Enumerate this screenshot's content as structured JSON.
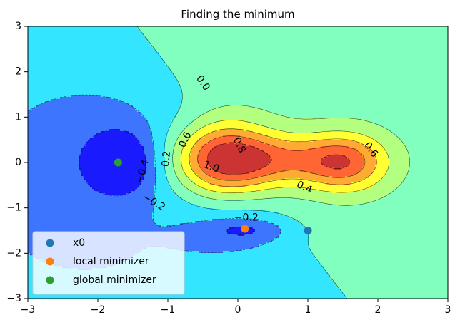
{
  "chart_data": {
    "type": "contour",
    "title": "Finding the minimum",
    "xlabel": "",
    "ylabel": "",
    "xlim": [
      -3,
      3
    ],
    "ylim": [
      -3,
      3
    ],
    "x_ticks": [
      -3,
      -2,
      -1,
      0,
      1,
      2,
      3
    ],
    "y_ticks": [
      -3,
      -2,
      -1,
      0,
      1,
      2,
      3
    ],
    "x_tick_labels": [
      "−3",
      "−2",
      "−1",
      "0",
      "1",
      "2",
      "3"
    ],
    "y_tick_labels": [
      "−3",
      "−2",
      "−1",
      "0",
      "1",
      "2",
      "3"
    ],
    "grid": false,
    "legend_position": "lower-left",
    "contour_levels": [
      -0.4,
      -0.2,
      0.0,
      0.2,
      0.4,
      0.6,
      0.8,
      1.0
    ],
    "contour_labels": [
      {
        "text": "0.0",
        "x": -0.5,
        "y": 1.75,
        "angle": 55
      },
      {
        "text": "0.2",
        "x": -1.02,
        "y": 0.08,
        "angle": -85
      },
      {
        "text": "0.4",
        "x": 0.95,
        "y": -0.55,
        "angle": 25
      },
      {
        "text": "0.6",
        "x": -0.75,
        "y": 0.5,
        "angle": -65
      },
      {
        "text": "0.6",
        "x": 1.9,
        "y": 0.28,
        "angle": 55
      },
      {
        "text": "0.8",
        "x": 0.02,
        "y": 0.38,
        "angle": 65
      },
      {
        "text": "1.0",
        "x": -0.38,
        "y": -0.1,
        "angle": 20
      },
      {
        "text": "−0.2",
        "x": -1.2,
        "y": -0.88,
        "angle": 30
      },
      {
        "text": "−0.2",
        "x": 0.12,
        "y": -1.22,
        "angle": 0
      },
      {
        "text": "−0.4",
        "x": -1.36,
        "y": -0.2,
        "angle": -75
      }
    ],
    "series": [
      {
        "name": "x0",
        "color": "#1f77b4",
        "x": [
          1.0
        ],
        "y": [
          -1.5
        ]
      },
      {
        "name": "local minimizer",
        "color": "#ff7f0e",
        "x": [
          0.1
        ],
        "y": [
          -1.46
        ]
      },
      {
        "name": "global minimizer",
        "color": "#2ca02c",
        "x": [
          -1.71
        ],
        "y": [
          0.0
        ]
      }
    ],
    "colors": {
      "level_lt_-0.4": "#1a1aff",
      "level_-0.4_-0.2": "#3d75ff",
      "level_-0.2_0.0": "#33e5ff",
      "level_0.0_0.2": "#80ffbf",
      "level_0.2_0.4": "#b3ff80",
      "level_0.4_0.6": "#ffff33",
      "level_0.6_0.8": "#ffaa33",
      "level_0.8_1.0": "#ff6633",
      "level_gt_1.0": "#cc3333"
    }
  }
}
